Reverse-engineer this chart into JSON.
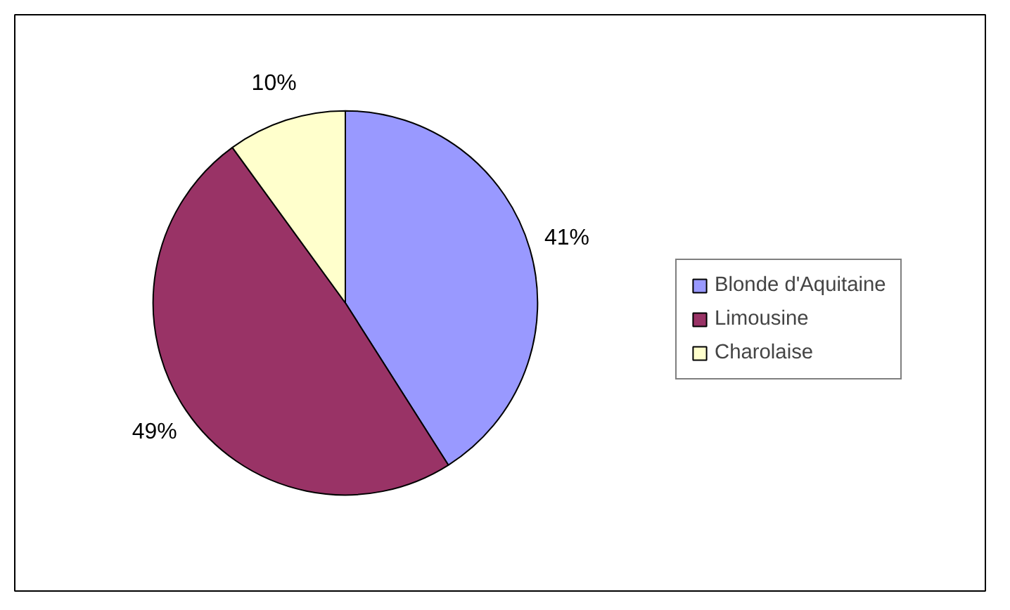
{
  "chart_data": {
    "type": "pie",
    "categories": [
      "Blonde d'Aquitaine",
      "Limousine",
      "Charolaise"
    ],
    "values": [
      41,
      49,
      10
    ],
    "colors": [
      "#9999ff",
      "#993366",
      "#ffffcc"
    ],
    "value_labels": [
      "41%",
      "49%",
      "10%"
    ],
    "legend": "right"
  }
}
